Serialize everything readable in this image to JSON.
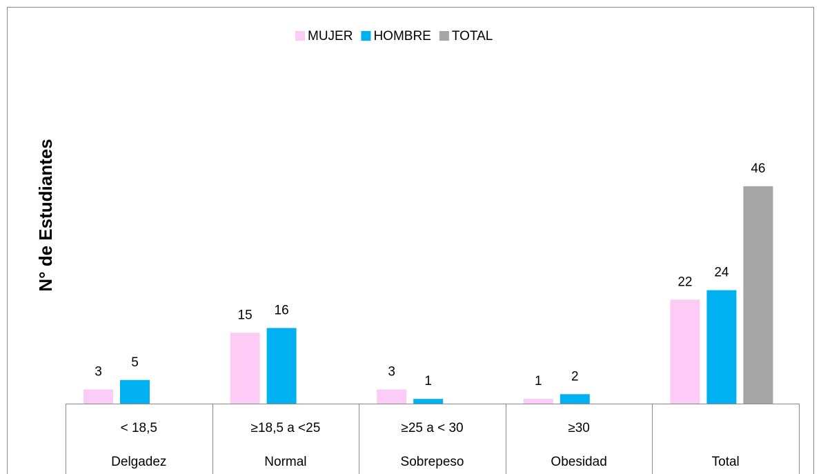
{
  "chart_data": {
    "type": "bar",
    "ylabel": "N° de Estudiantes",
    "categories": [
      "Delgadez",
      "Normal",
      "Sobrepeso",
      "Obesidad",
      "Total"
    ],
    "ranges": [
      "< 18,5",
      "≥18,5 a <25",
      "≥25 a < 30",
      "≥30",
      null
    ],
    "series": [
      {
        "name": "MUJER",
        "color": "#fccbf6",
        "values": [
          3,
          15,
          3,
          1,
          22
        ]
      },
      {
        "name": "HOMBRE",
        "color": "#00b0f0",
        "values": [
          5,
          16,
          1,
          2,
          24
        ]
      },
      {
        "name": "TOTAL",
        "color": "#a6a6a6",
        "values": [
          null,
          null,
          null,
          null,
          46
        ]
      }
    ],
    "ylim": [
      0,
      50
    ],
    "legend": "top"
  }
}
